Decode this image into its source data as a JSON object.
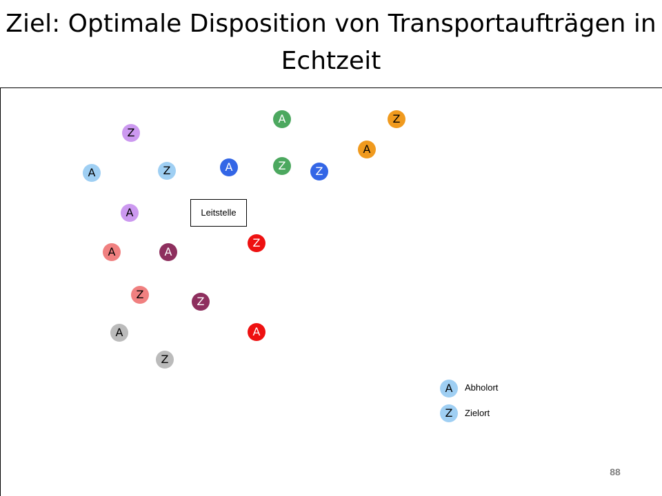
{
  "slide": {
    "title_line1": "Ziel: Optimale Disposition von Transportaufträgen in",
    "title_line2": "Echtzeit",
    "page_number": "88"
  },
  "depot": {
    "label": "Leitstelle"
  },
  "colors": {
    "light_blue": "#9FCFF3",
    "lavender": "#CC99F0",
    "green": "#4CA85F",
    "orange": "#F09A1E",
    "royal_blue": "#3366E6",
    "red": "#EE1111",
    "salmon": "#F08080",
    "plum": "#8E2F5E",
    "gray": "#BBBBBB"
  },
  "orders": [
    {
      "pickup": "A",
      "destination": "Z",
      "color": "#9FCFF3"
    },
    {
      "pickup": "A",
      "destination": "Z",
      "color": "#CC99F0"
    },
    {
      "pickup": "A",
      "destination": "Z",
      "color": "#4CA85F"
    },
    {
      "pickup": "A",
      "destination": "Z",
      "color": "#F09A1E"
    },
    {
      "pickup": "A",
      "destination": "Z",
      "color": "#3366E6"
    },
    {
      "pickup": "A",
      "destination": "Z",
      "color": "#EE1111"
    },
    {
      "pickup": "A",
      "destination": "Z",
      "color": "#F08080"
    },
    {
      "pickup": "A",
      "destination": "Z",
      "color": "#8E2F5E"
    },
    {
      "pickup": "A",
      "destination": "Z",
      "color": "#BBBBBB"
    }
  ],
  "legend": {
    "pickup_symbol": "A",
    "pickup_label": "Abholort",
    "destination_symbol": "Z",
    "destination_label": "Zielort",
    "symbol_color": "#9FCFF3"
  }
}
